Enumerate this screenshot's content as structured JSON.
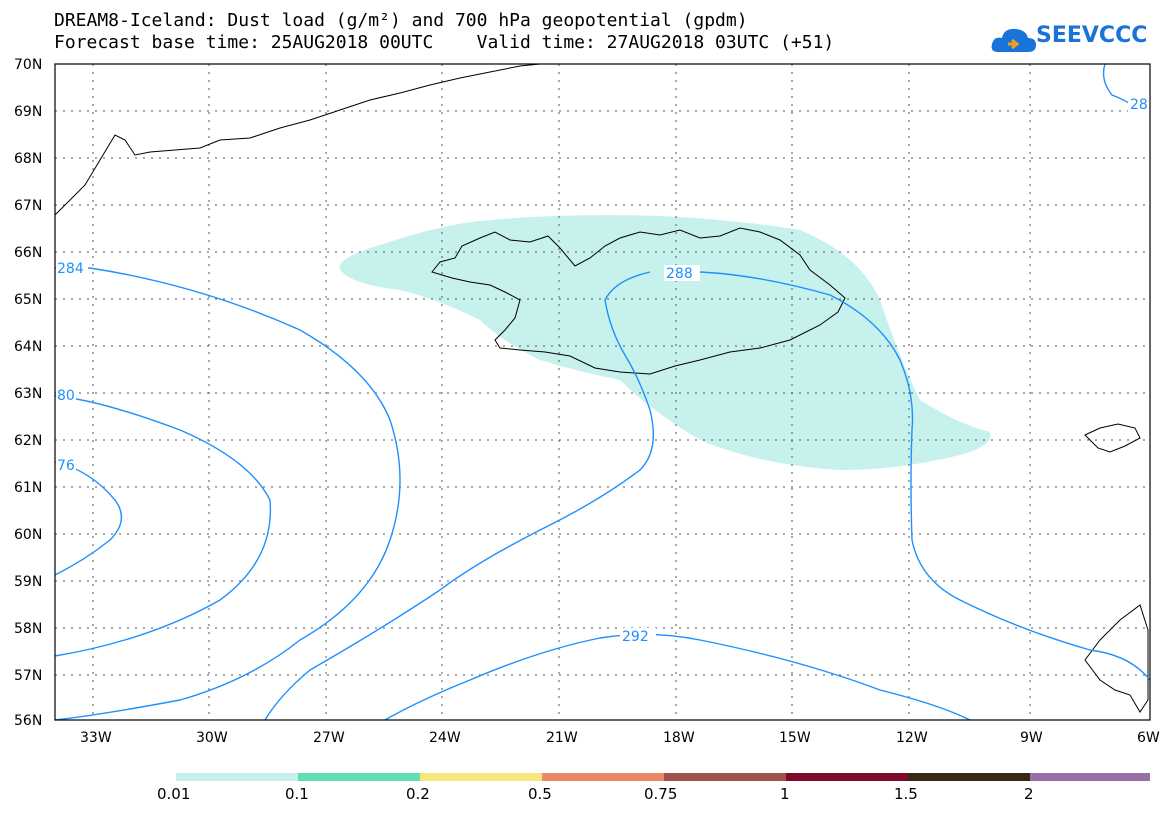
{
  "header": {
    "title_line1": "DREAM8-Iceland: Dust load (g/m²) and 700 hPa geopotential (gpdm)",
    "title_line2": "Forecast base time: 25AUG2018 00UTC    Valid time: 27AUG2018 03UTC (+51)"
  },
  "logo": {
    "text": "SEEVCCC",
    "icon": "cloud-icon",
    "color": "#1a73d9"
  },
  "map": {
    "lat_labels": [
      "70N",
      "69N",
      "68N",
      "67N",
      "66N",
      "65N",
      "64N",
      "63N",
      "62N",
      "61N",
      "60N",
      "59N",
      "58N",
      "57N",
      "56N"
    ],
    "lon_labels": [
      "33W",
      "30W",
      "27W",
      "24W",
      "21W",
      "18W",
      "15W",
      "12W",
      "9W",
      "6W"
    ],
    "contour_labels": {
      "c284": "284",
      "c280": "80",
      "c276": "76",
      "c288": "288",
      "c288ne": "28",
      "c292": "292"
    },
    "dust_fill_color": "#c6f1ec",
    "contour_color": "#1e90ff"
  },
  "colorbar": {
    "colors": [
      "#c6f1ec",
      "#5fe0b0",
      "#f5e77c",
      "#e88a68",
      "#a0524a",
      "#7d0a2a",
      "#3a2a14",
      "#9a6fa8"
    ],
    "labels": [
      "0.01",
      "0.1",
      "0.2",
      "0.5",
      "0.75",
      "1",
      "1.5",
      "2"
    ]
  }
}
